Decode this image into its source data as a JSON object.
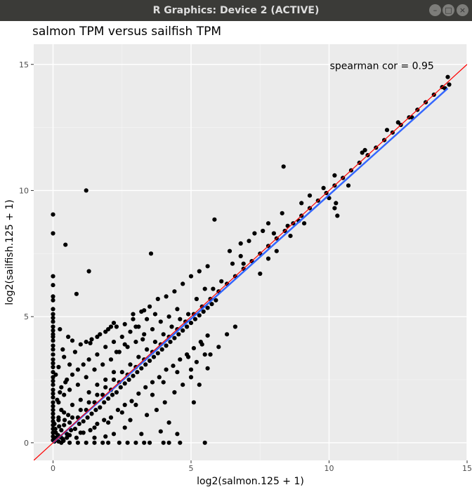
{
  "window": {
    "title": "R Graphics: Device 2 (ACTIVE)",
    "buttons": {
      "minimize": "–",
      "maximize": "□",
      "close": "×"
    }
  },
  "chart_data": {
    "type": "scatter",
    "title": "salmon TPM versus sailfish TPM",
    "xlabel": "log2(salmon.125 + 1)",
    "ylabel": "log2(sailfish.125 + 1)",
    "xlim": [
      -0.7,
      15
    ],
    "ylim": [
      -0.7,
      15.8
    ],
    "xticks": [
      0,
      5,
      10,
      15
    ],
    "yticks": [
      0,
      5,
      10,
      15
    ],
    "grid": true,
    "annotation": "spearman cor = 0.95",
    "point_color": "#000000",
    "background_color": "#ebebeb",
    "identity_line": {
      "label": "y = x",
      "color": "#ff0000",
      "intercept": 0,
      "slope": 1
    },
    "fit_line": {
      "label": "linear fit",
      "color": "#3366ff",
      "x": [
        0,
        14.3
      ],
      "y": [
        0,
        14.05
      ]
    },
    "points": [
      [
        0,
        9.05
      ],
      [
        0,
        8.3
      ],
      [
        0.45,
        7.85
      ],
      [
        1.2,
        10.0
      ],
      [
        1.3,
        6.8
      ],
      [
        0.85,
        5.9
      ],
      [
        3.55,
        7.5
      ],
      [
        5.85,
        8.85
      ],
      [
        8.35,
        10.95
      ],
      [
        0,
        6.6
      ],
      [
        0,
        6.25
      ],
      [
        0,
        5.8
      ],
      [
        0,
        5.65
      ],
      [
        0,
        5.3
      ],
      [
        0,
        5.1
      ],
      [
        0,
        4.95
      ],
      [
        0,
        4.8
      ],
      [
        0,
        4.6
      ],
      [
        0,
        4.45
      ],
      [
        0,
        4.3
      ],
      [
        0,
        4.2
      ],
      [
        0,
        4.05
      ],
      [
        0,
        3.85
      ],
      [
        0,
        3.7
      ],
      [
        0,
        3.5
      ],
      [
        0,
        3.3
      ],
      [
        0,
        3.15
      ],
      [
        0,
        3.0
      ],
      [
        0,
        2.8
      ],
      [
        0,
        2.6
      ],
      [
        0,
        2.45
      ],
      [
        0,
        2.3
      ],
      [
        0,
        2.1
      ],
      [
        0,
        1.95
      ],
      [
        0,
        1.8
      ],
      [
        0,
        1.6
      ],
      [
        0,
        1.45
      ],
      [
        0,
        1.3
      ],
      [
        0,
        1.15
      ],
      [
        0,
        1.0
      ],
      [
        0,
        0.85
      ],
      [
        0,
        0.7
      ],
      [
        0,
        0.55
      ],
      [
        0,
        0.4
      ],
      [
        0,
        0.25
      ],
      [
        0,
        0.1
      ],
      [
        0.3,
        0
      ],
      [
        0.6,
        0
      ],
      [
        0.9,
        0
      ],
      [
        1.2,
        0
      ],
      [
        1.5,
        0
      ],
      [
        1.8,
        0
      ],
      [
        2.0,
        0
      ],
      [
        2.4,
        0
      ],
      [
        2.7,
        0
      ],
      [
        3.0,
        0
      ],
      [
        3.3,
        0
      ],
      [
        3.5,
        0
      ],
      [
        4.0,
        0
      ],
      [
        4.2,
        0
      ],
      [
        4.6,
        0
      ],
      [
        5.5,
        0
      ],
      [
        1.9,
        0.25
      ],
      [
        2.6,
        0.6
      ],
      [
        3.2,
        0.35
      ],
      [
        3.9,
        0.45
      ],
      [
        4.2,
        0.8
      ],
      [
        4.5,
        0.35
      ],
      [
        5.1,
        1.6
      ],
      [
        5.3,
        2.3
      ],
      [
        5.6,
        2.95
      ],
      [
        5.0,
        2.6
      ],
      [
        5.7,
        3.5
      ],
      [
        6.0,
        3.8
      ],
      [
        6.3,
        4.3
      ],
      [
        6.6,
        4.6
      ],
      [
        5.4,
        3.9
      ],
      [
        4.9,
        3.4
      ],
      [
        4.5,
        2.8
      ],
      [
        4.0,
        2.4
      ],
      [
        3.6,
        1.9
      ],
      [
        3.0,
        1.5
      ],
      [
        2.5,
        1.2
      ],
      [
        2.0,
        0.8
      ],
      [
        1.5,
        0.6
      ],
      [
        1.0,
        0.4
      ],
      [
        0.5,
        0.2
      ],
      [
        0.2,
        3.0
      ],
      [
        0.4,
        3.4
      ],
      [
        0.6,
        3.1
      ],
      [
        0.8,
        3.6
      ],
      [
        1.0,
        3.9
      ],
      [
        1.2,
        4.0
      ],
      [
        1.4,
        4.1
      ],
      [
        1.7,
        4.3
      ],
      [
        2.0,
        4.5
      ],
      [
        2.3,
        4.6
      ],
      [
        2.6,
        4.7
      ],
      [
        2.9,
        4.9
      ],
      [
        3.2,
        5.2
      ],
      [
        3.5,
        5.4
      ],
      [
        3.8,
        5.7
      ],
      [
        4.1,
        5.8
      ],
      [
        4.4,
        6.0
      ],
      [
        4.7,
        6.3
      ],
      [
        5.0,
        6.6
      ],
      [
        5.3,
        6.8
      ],
      [
        5.6,
        7.0
      ],
      [
        6.4,
        7.6
      ],
      [
        6.8,
        7.9
      ],
      [
        7.3,
        8.3
      ],
      [
        7.8,
        8.7
      ],
      [
        8.3,
        9.1
      ],
      [
        0.3,
        2.2
      ],
      [
        0.5,
        2.5
      ],
      [
        0.7,
        2.7
      ],
      [
        0.9,
        2.9
      ],
      [
        1.1,
        3.1
      ],
      [
        1.3,
        3.3
      ],
      [
        1.6,
        3.5
      ],
      [
        1.9,
        3.8
      ],
      [
        2.2,
        4.0
      ],
      [
        2.5,
        4.2
      ],
      [
        2.8,
        4.4
      ],
      [
        3.1,
        4.6
      ],
      [
        3.4,
        4.9
      ],
      [
        3.7,
        5.1
      ],
      [
        0.2,
        1.6
      ],
      [
        0.4,
        1.9
      ],
      [
        0.6,
        2.1
      ],
      [
        0.9,
        2.3
      ],
      [
        1.2,
        2.6
      ],
      [
        1.5,
        2.9
      ],
      [
        1.8,
        3.1
      ],
      [
        2.1,
        3.3
      ],
      [
        2.4,
        3.6
      ],
      [
        2.7,
        3.8
      ],
      [
        3.0,
        4.0
      ],
      [
        3.3,
        4.3
      ],
      [
        3.6,
        4.5
      ],
      [
        3.9,
        4.8
      ],
      [
        4.2,
        5.0
      ],
      [
        4.5,
        5.3
      ],
      [
        0.2,
        1.0
      ],
      [
        0.4,
        1.2
      ],
      [
        0.7,
        1.5
      ],
      [
        1.0,
        1.7
      ],
      [
        1.3,
        2.0
      ],
      [
        1.6,
        2.3
      ],
      [
        1.9,
        2.5
      ],
      [
        2.2,
        2.8
      ],
      [
        0.3,
        0.5
      ],
      [
        0.6,
        0.8
      ],
      [
        0.9,
        1.0
      ],
      [
        1.2,
        1.3
      ],
      [
        1.5,
        1.6
      ],
      [
        1.8,
        1.9
      ],
      [
        2.1,
        2.1
      ],
      [
        2.4,
        2.4
      ],
      [
        2.7,
        2.7
      ],
      [
        3.0,
        3.0
      ],
      [
        3.3,
        3.3
      ],
      [
        3.6,
        3.6
      ],
      [
        3.9,
        3.9
      ],
      [
        4.2,
        4.2
      ],
      [
        4.5,
        4.5
      ],
      [
        4.8,
        4.8
      ],
      [
        5.1,
        5.1
      ],
      [
        5.4,
        5.4
      ],
      [
        5.7,
        5.7
      ],
      [
        6.0,
        6.0
      ],
      [
        6.3,
        6.3
      ],
      [
        6.6,
        6.6
      ],
      [
        6.9,
        6.9
      ],
      [
        7.2,
        7.2
      ],
      [
        7.5,
        7.5
      ],
      [
        7.8,
        7.8
      ],
      [
        8.1,
        8.1
      ],
      [
        8.4,
        8.4
      ],
      [
        8.7,
        8.7
      ],
      [
        9.0,
        9.0
      ],
      [
        9.3,
        9.3
      ],
      [
        9.6,
        9.6
      ],
      [
        9.9,
        9.9
      ],
      [
        10.2,
        10.2
      ],
      [
        10.5,
        10.5
      ],
      [
        10.8,
        10.8
      ],
      [
        11.1,
        11.1
      ],
      [
        11.4,
        11.4
      ],
      [
        11.7,
        11.7
      ],
      [
        12.0,
        12.0
      ],
      [
        12.3,
        12.3
      ],
      [
        12.6,
        12.6
      ],
      [
        12.9,
        12.9
      ],
      [
        13.2,
        13.2
      ],
      [
        13.5,
        13.5
      ],
      [
        13.8,
        13.8
      ],
      [
        14.1,
        14.1
      ],
      [
        14.3,
        14.5
      ],
      [
        14.35,
        14.2
      ],
      [
        14.2,
        14.05
      ],
      [
        12.1,
        12.4
      ],
      [
        11.3,
        11.6
      ],
      [
        10.2,
        10.6
      ],
      [
        9.8,
        10.1
      ],
      [
        9.3,
        9.8
      ],
      [
        9.0,
        9.5
      ],
      [
        10.0,
        9.7
      ],
      [
        10.2,
        9.3
      ],
      [
        10.25,
        9.5
      ],
      [
        10.3,
        9.0
      ],
      [
        10.7,
        10.2
      ],
      [
        11.2,
        11.5
      ],
      [
        12.5,
        12.7
      ],
      [
        13.0,
        12.9
      ],
      [
        7.5,
        6.7
      ],
      [
        7.8,
        7.3
      ],
      [
        8.1,
        7.6
      ],
      [
        8.6,
        8.2
      ],
      [
        9.1,
        8.7
      ],
      [
        6.8,
        7.4
      ],
      [
        7.1,
        8.0
      ],
      [
        7.6,
        8.4
      ],
      [
        8.0,
        8.3
      ],
      [
        8.5,
        8.6
      ],
      [
        8.9,
        8.8
      ],
      [
        6.1,
        6.4
      ],
      [
        6.5,
        7.1
      ],
      [
        6.9,
        7.1
      ],
      [
        5.2,
        5.7
      ],
      [
        5.5,
        6.1
      ],
      [
        5.8,
        6.1
      ],
      [
        4.9,
        5.1
      ],
      [
        4.6,
        4.9
      ],
      [
        4.3,
        4.6
      ],
      [
        4.0,
        4.3
      ],
      [
        3.7,
        4.0
      ],
      [
        3.4,
        3.7
      ],
      [
        3.1,
        3.4
      ],
      [
        2.8,
        3.1
      ],
      [
        2.5,
        2.8
      ],
      [
        2.2,
        2.5
      ],
      [
        1.9,
        2.2
      ],
      [
        1.6,
        1.9
      ],
      [
        1.3,
        1.6
      ],
      [
        1.0,
        1.3
      ],
      [
        0.7,
        1.0
      ],
      [
        0.4,
        0.7
      ],
      [
        0.1,
        0.4
      ],
      [
        0.1,
        0.2
      ],
      [
        0.2,
        0.05
      ],
      [
        0.35,
        0.15
      ],
      [
        0.5,
        0.35
      ],
      [
        0.65,
        0.5
      ],
      [
        0.8,
        0.55
      ],
      [
        0.95,
        0.75
      ],
      [
        1.1,
        0.85
      ],
      [
        1.25,
        1.0
      ],
      [
        1.4,
        1.15
      ],
      [
        1.55,
        1.3
      ],
      [
        1.7,
        1.4
      ],
      [
        1.85,
        1.6
      ],
      [
        2.0,
        1.75
      ],
      [
        2.15,
        1.9
      ],
      [
        2.3,
        2.0
      ],
      [
        2.45,
        2.2
      ],
      [
        2.6,
        2.35
      ],
      [
        2.75,
        2.5
      ],
      [
        2.9,
        2.65
      ],
      [
        3.05,
        2.8
      ],
      [
        3.2,
        2.95
      ],
      [
        3.35,
        3.1
      ],
      [
        3.5,
        3.25
      ],
      [
        3.65,
        3.4
      ],
      [
        3.8,
        3.55
      ],
      [
        3.95,
        3.7
      ],
      [
        4.1,
        3.85
      ],
      [
        4.25,
        4.0
      ],
      [
        4.4,
        4.15
      ],
      [
        4.55,
        4.3
      ],
      [
        4.7,
        4.45
      ],
      [
        4.85,
        4.6
      ],
      [
        5.0,
        4.75
      ],
      [
        5.15,
        4.9
      ],
      [
        5.3,
        5.05
      ],
      [
        5.45,
        5.2
      ],
      [
        5.6,
        5.35
      ],
      [
        5.75,
        5.5
      ],
      [
        5.9,
        5.65
      ],
      [
        0.2,
        0.9
      ],
      [
        0.3,
        1.3
      ],
      [
        0.15,
        1.7
      ],
      [
        0.25,
        2.0
      ],
      [
        0.45,
        2.4
      ],
      [
        0.1,
        2.7
      ],
      [
        0.35,
        3.7
      ],
      [
        0.55,
        4.2
      ],
      [
        0.25,
        4.5
      ],
      [
        0.7,
        4.05
      ],
      [
        1.35,
        3.95
      ],
      [
        1.6,
        4.2
      ],
      [
        1.9,
        4.4
      ],
      [
        2.1,
        4.6
      ],
      [
        2.2,
        4.75
      ],
      [
        2.9,
        5.1
      ],
      [
        3.3,
        5.25
      ],
      [
        3.0,
        4.6
      ],
      [
        3.25,
        4.1
      ],
      [
        2.6,
        3.9
      ],
      [
        2.3,
        3.6
      ],
      [
        0.6,
        0.3
      ],
      [
        0.85,
        0.2
      ],
      [
        1.1,
        0.4
      ],
      [
        1.35,
        0.5
      ],
      [
        1.6,
        0.75
      ],
      [
        1.85,
        0.9
      ],
      [
        2.1,
        1.0
      ],
      [
        2.35,
        1.3
      ],
      [
        2.6,
        1.5
      ],
      [
        2.85,
        1.65
      ],
      [
        3.1,
        1.95
      ],
      [
        3.35,
        2.2
      ],
      [
        3.6,
        2.4
      ],
      [
        3.85,
        2.6
      ],
      [
        4.1,
        2.9
      ],
      [
        4.35,
        3.05
      ],
      [
        4.6,
        3.3
      ],
      [
        4.85,
        3.5
      ],
      [
        5.1,
        3.75
      ],
      [
        5.35,
        4.0
      ],
      [
        5.6,
        4.25
      ],
      [
        1.5,
        0.2
      ],
      [
        2.2,
        0.35
      ],
      [
        2.8,
        0.9
      ],
      [
        3.4,
        1.1
      ],
      [
        3.75,
        1.3
      ],
      [
        4.05,
        1.6
      ],
      [
        4.4,
        2.0
      ],
      [
        4.7,
        2.3
      ],
      [
        5.0,
        2.9
      ],
      [
        5.2,
        3.2
      ],
      [
        5.5,
        3.5
      ],
      [
        0.05,
        0.05
      ],
      [
        0.12,
        0.12
      ],
      [
        0.18,
        0.3
      ],
      [
        0.28,
        0.22
      ],
      [
        0.38,
        0.08
      ],
      [
        0.08,
        0.55
      ],
      [
        0.22,
        0.65
      ],
      [
        0.05,
        0.75
      ],
      [
        0.42,
        0.9
      ],
      [
        0.55,
        1.1
      ]
    ]
  }
}
